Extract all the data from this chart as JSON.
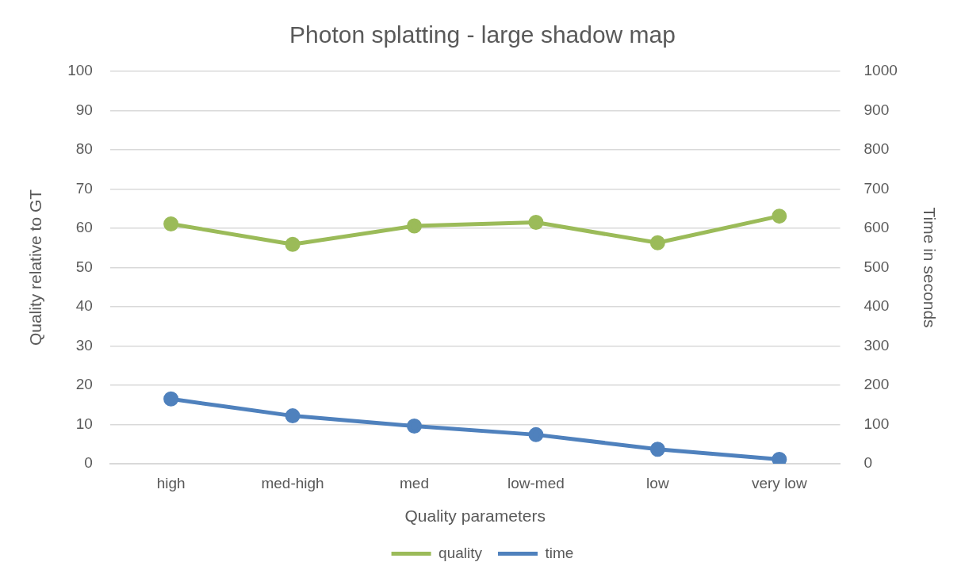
{
  "chart_data": {
    "type": "line",
    "title": "Photon splatting - large shadow map",
    "xlabel": "Quality parameters",
    "ylabel": "Quality relative to GT",
    "y2label": "Time in seconds",
    "categories": [
      "high",
      "med-high",
      "med",
      "low-med",
      "low",
      "very low"
    ],
    "series": [
      {
        "name": "quality",
        "color": "#9bbb59",
        "values": [
          61.1,
          55.9,
          60.6,
          61.5,
          56.3,
          63.1
        ]
      },
      {
        "name": "time",
        "color": "#4f81bd",
        "axis": "y2",
        "values": [
          165,
          122,
          96,
          74,
          37,
          11
        ]
      }
    ],
    "ylim": [
      0,
      100
    ],
    "yticks": [
      0,
      10,
      20,
      30,
      40,
      50,
      60,
      70,
      80,
      90,
      100
    ],
    "y2lim": [
      0,
      1000
    ],
    "y2ticks": [
      0,
      100,
      200,
      300,
      400,
      500,
      600,
      700,
      800,
      900,
      1000
    ],
    "grid": "y",
    "legend": "bottom",
    "marker": "circle",
    "line_style": "solid"
  }
}
